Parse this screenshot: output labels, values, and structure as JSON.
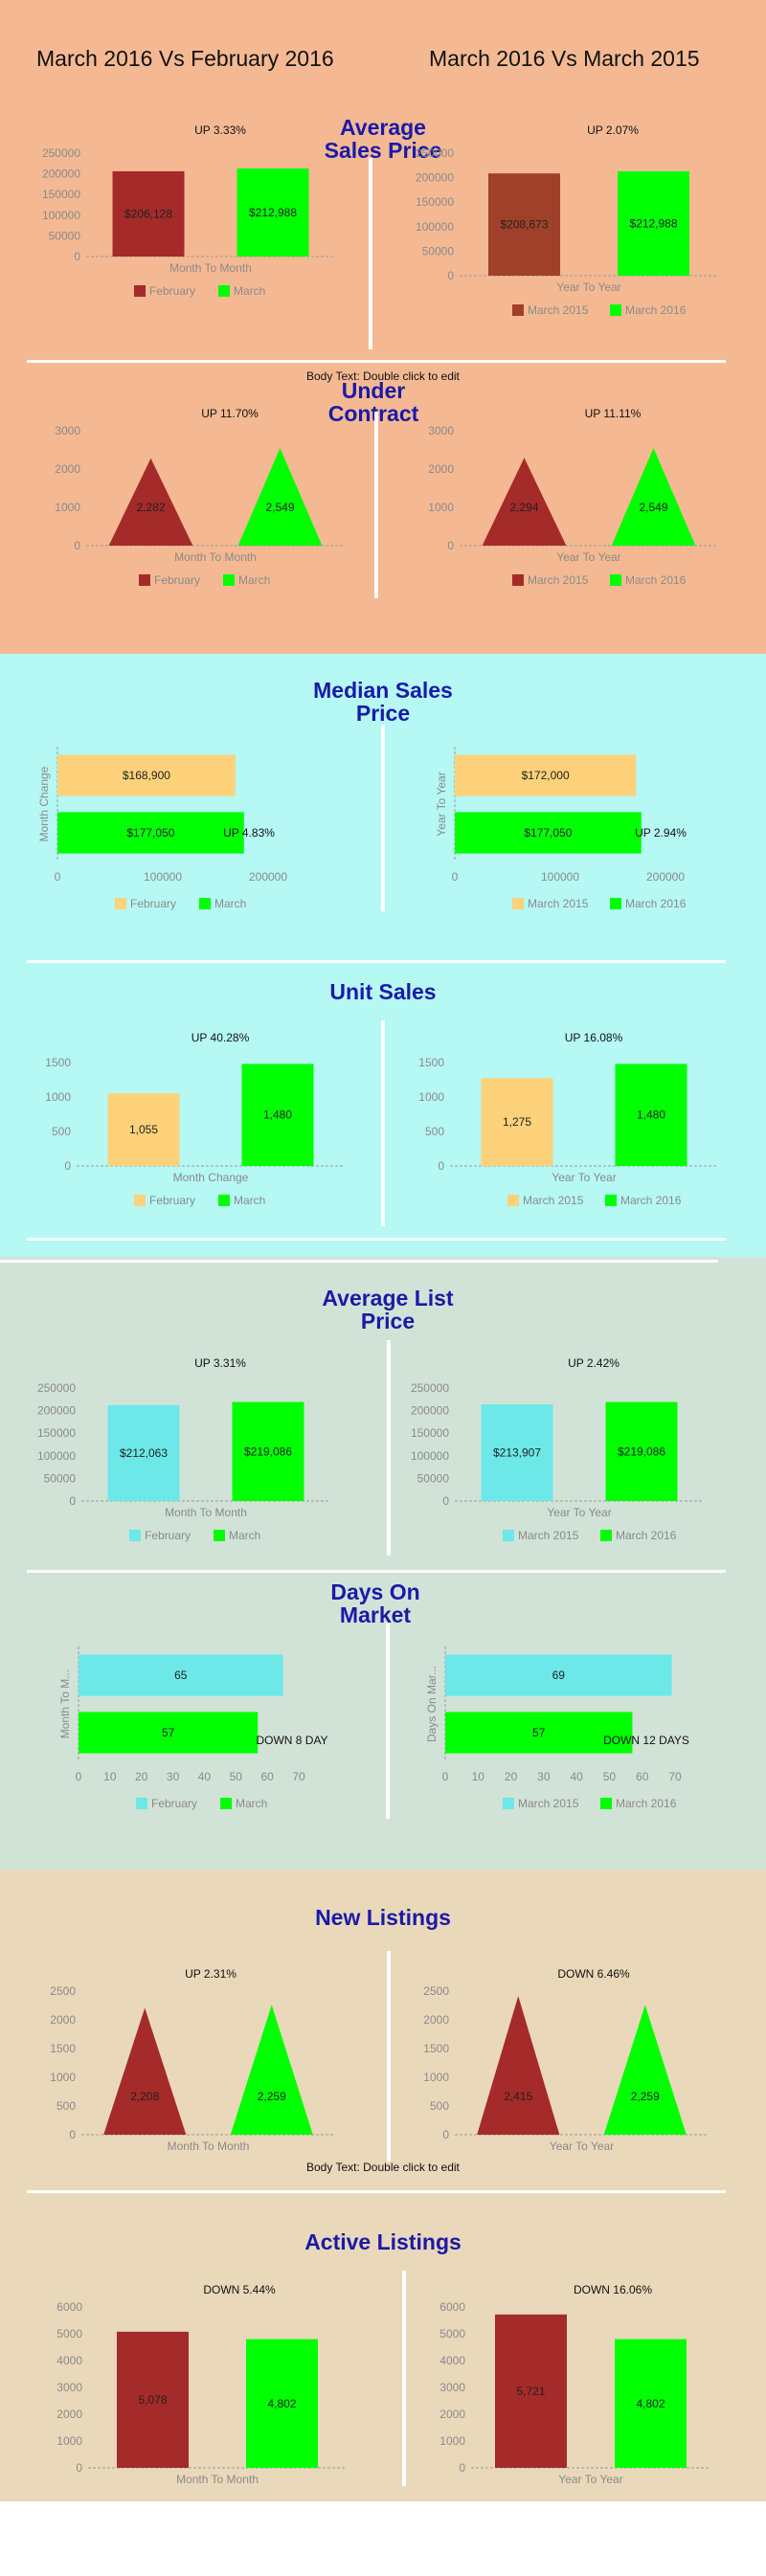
{
  "bands": {
    "orange": "#f4b993",
    "cyan": "#b5f8f4",
    "sage": "#d1e3d7",
    "tan": "#ead8ba"
  },
  "colors": {
    "feb": "#a52a2a",
    "march": "#00ff00",
    "m2015": "#a0402a",
    "yellow": "#fdd27a",
    "teal": "#6ce8e8",
    "title": "#1a1aa8"
  },
  "header": {
    "left": "March 2016 Vs February 2016",
    "right": "March 2016 Vs March 2015"
  },
  "sections": {
    "avg_sales": "Average Sales Price",
    "under_contract": "Under Contract",
    "median_sales": "Median Sales Price",
    "unit_sales": "Unit Sales",
    "avg_list": "Average List Price",
    "days_market": "Days On Market",
    "new_listings": "New Listings",
    "active_listings": "Active Listings"
  },
  "body_text": {
    "t1": "Body Text: Double click to edit",
    "t2": "Body Text: Double click to edit"
  },
  "chart_data": [
    {
      "id": "c1",
      "type": "bar",
      "categories": [
        "February",
        "March"
      ],
      "values": [
        206128,
        212988
      ],
      "labels": [
        "$206,128",
        "$212,988"
      ],
      "xlabel": "Month To Month",
      "ylim": [
        0,
        250000
      ],
      "ticks": [
        0,
        50000,
        100000,
        150000,
        200000,
        250000
      ],
      "annotation": "UP 3.33%",
      "colors": [
        "#a52a2a",
        "#00ff00"
      ]
    },
    {
      "id": "c2",
      "type": "bar",
      "categories": [
        "March 2015",
        "March 2016"
      ],
      "values": [
        208673,
        212988
      ],
      "labels": [
        "$208,673",
        "$212,988"
      ],
      "xlabel": "Year To Year",
      "ylim": [
        0,
        250000
      ],
      "ticks": [
        0,
        50000,
        100000,
        150000,
        200000,
        250000
      ],
      "annotation": "UP 2.07%",
      "colors": [
        "#a0402a",
        "#00ff00"
      ]
    },
    {
      "id": "c3",
      "type": "triangle",
      "categories": [
        "February",
        "March"
      ],
      "values": [
        2282,
        2549
      ],
      "labels": [
        "2,282",
        "2,549"
      ],
      "xlabel": "Month To Month",
      "ylim": [
        0,
        3000
      ],
      "ticks": [
        0,
        1000,
        2000,
        3000
      ],
      "annotation": "UP 11.70%",
      "colors": [
        "#a52a2a",
        "#00ff00"
      ]
    },
    {
      "id": "c4",
      "type": "triangle",
      "categories": [
        "March 2015",
        "March 2016"
      ],
      "values": [
        2294,
        2549
      ],
      "labels": [
        "2,294",
        "2,549"
      ],
      "xlabel": "Year To Year",
      "ylim": [
        0,
        3000
      ],
      "ticks": [
        0,
        1000,
        2000,
        3000
      ],
      "annotation": "UP 11.11%",
      "colors": [
        "#a52a2a",
        "#00ff00"
      ]
    },
    {
      "id": "c5",
      "type": "hbar",
      "categories": [
        "February",
        "March"
      ],
      "values": [
        168900,
        177050
      ],
      "labels": [
        "$168,900",
        "$177,050"
      ],
      "ylabel": "Month Change",
      "xlim": [
        0,
        200000
      ],
      "ticks": [
        0,
        100000,
        200000
      ],
      "annotation": "UP 4.83%",
      "colors": [
        "#fdd27a",
        "#00ff00"
      ]
    },
    {
      "id": "c6",
      "type": "hbar",
      "categories": [
        "March 2015",
        "March 2016"
      ],
      "values": [
        172000,
        177050
      ],
      "labels": [
        "$172,000",
        "$177,050"
      ],
      "ylabel": "Year To Year",
      "xlim": [
        0,
        200000
      ],
      "ticks": [
        0,
        100000,
        200000
      ],
      "annotation": "UP 2.94%",
      "colors": [
        "#fdd27a",
        "#00ff00"
      ]
    },
    {
      "id": "c7",
      "type": "bar",
      "categories": [
        "February",
        "March"
      ],
      "values": [
        1055,
        1480
      ],
      "labels": [
        "1,055",
        "1,480"
      ],
      "xlabel": "Month Change",
      "ylim": [
        0,
        1500
      ],
      "ticks": [
        0,
        500,
        1000,
        1500
      ],
      "annotation": "UP 40.28%",
      "colors": [
        "#fdd27a",
        "#00ff00"
      ]
    },
    {
      "id": "c8",
      "type": "bar",
      "categories": [
        "March 2015",
        "March 2016"
      ],
      "values": [
        1275,
        1480
      ],
      "labels": [
        "1,275",
        "1,480"
      ],
      "xlabel": "Year To Year",
      "ylim": [
        0,
        1500
      ],
      "ticks": [
        0,
        500,
        1000,
        1500
      ],
      "annotation": "UP 16.08%",
      "colors": [
        "#fdd27a",
        "#00ff00"
      ]
    },
    {
      "id": "c9",
      "type": "bar",
      "categories": [
        "February",
        "March"
      ],
      "values": [
        212063,
        219086
      ],
      "labels": [
        "$212,063",
        "$219,086"
      ],
      "xlabel": "Month To Month",
      "ylim": [
        0,
        250000
      ],
      "ticks": [
        0,
        50000,
        100000,
        150000,
        200000,
        250000
      ],
      "annotation": "UP 3.31%",
      "colors": [
        "#6ce8e8",
        "#00ff00"
      ]
    },
    {
      "id": "c10",
      "type": "bar",
      "categories": [
        "March 2015",
        "March 2016"
      ],
      "values": [
        213907,
        219086
      ],
      "labels": [
        "$213,907",
        "$219,086"
      ],
      "xlabel": "Year To Year",
      "ylim": [
        0,
        250000
      ],
      "ticks": [
        0,
        50000,
        100000,
        150000,
        200000,
        250000
      ],
      "annotation": "UP 2.42%",
      "colors": [
        "#6ce8e8",
        "#00ff00"
      ]
    },
    {
      "id": "c11",
      "type": "hbar",
      "categories": [
        "February",
        "March"
      ],
      "values": [
        65,
        57
      ],
      "labels": [
        "65",
        "57"
      ],
      "ylabel": "Month To M...",
      "xlim": [
        0,
        70
      ],
      "ticks": [
        0,
        10,
        20,
        30,
        40,
        50,
        60,
        70
      ],
      "annotation": "DOWN 8 DAY",
      "colors": [
        "#6ce8e8",
        "#00ff00"
      ]
    },
    {
      "id": "c12",
      "type": "hbar",
      "categories": [
        "March 2015",
        "March 2016"
      ],
      "values": [
        69,
        57
      ],
      "labels": [
        "69",
        "57"
      ],
      "ylabel": "Days On Mar...",
      "xlim": [
        0,
        70
      ],
      "ticks": [
        0,
        10,
        20,
        30,
        40,
        50,
        60,
        70
      ],
      "annotation": "DOWN 12 DAYS",
      "colors": [
        "#6ce8e8",
        "#00ff00"
      ]
    },
    {
      "id": "c13",
      "type": "triangle",
      "categories": [
        "February",
        "March"
      ],
      "values": [
        2208,
        2259
      ],
      "labels": [
        "2,208",
        "2,259"
      ],
      "xlabel": "Month To Month",
      "ylim": [
        0,
        2500
      ],
      "ticks": [
        0,
        500,
        1000,
        1500,
        2000,
        2500
      ],
      "annotation": "UP 2.31%",
      "colors": [
        "#a52a2a",
        "#00ff00"
      ]
    },
    {
      "id": "c14",
      "type": "triangle",
      "categories": [
        "March 2015",
        "March 2016"
      ],
      "values": [
        2415,
        2259
      ],
      "labels": [
        "2,415",
        "2,259"
      ],
      "xlabel": "Year To Year",
      "ylim": [
        0,
        2500
      ],
      "ticks": [
        0,
        500,
        1000,
        1500,
        2000,
        2500
      ],
      "annotation": "DOWN 6.46%",
      "colors": [
        "#a52a2a",
        "#00ff00"
      ]
    },
    {
      "id": "c15",
      "type": "bar",
      "categories": [
        "February",
        "March"
      ],
      "values": [
        5078,
        4802
      ],
      "labels": [
        "5,078",
        "4,802"
      ],
      "xlabel": "Month To Month",
      "ylim": [
        0,
        6000
      ],
      "ticks": [
        0,
        1000,
        2000,
        3000,
        4000,
        5000,
        6000
      ],
      "annotation": "DOWN 5.44%",
      "colors": [
        "#a52a2a",
        "#00ff00"
      ]
    },
    {
      "id": "c16",
      "type": "bar",
      "categories": [
        "March 2015",
        "March 2016"
      ],
      "values": [
        5721,
        4802
      ],
      "labels": [
        "5,721",
        "4,802"
      ],
      "xlabel": "Year To Year",
      "ylim": [
        0,
        6000
      ],
      "ticks": [
        0,
        1000,
        2000,
        3000,
        4000,
        5000,
        6000
      ],
      "annotation": "DOWN 16.06%",
      "colors": [
        "#a52a2a",
        "#00ff00"
      ]
    }
  ]
}
